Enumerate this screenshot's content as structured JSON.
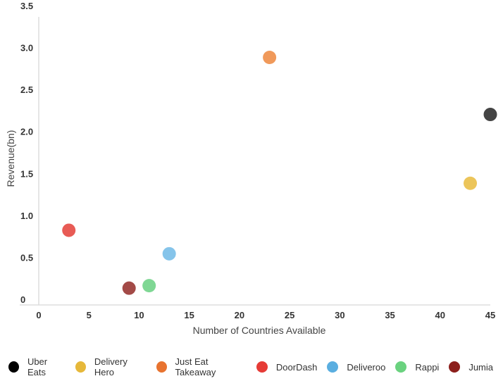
{
  "chart_data": {
    "type": "scatter",
    "title": "",
    "xlabel": "Number of Countries Available",
    "ylabel": "Revenue(bn)",
    "xlim": [
      0,
      45
    ],
    "ylim": [
      0,
      3.5
    ],
    "x_ticks": [
      "0",
      "5",
      "10",
      "15",
      "20",
      "25",
      "30",
      "35",
      "40",
      "45"
    ],
    "y_ticks": [
      "0",
      "0.5",
      "1.0",
      "1.5",
      "2.0",
      "2.5",
      "3.0",
      "3.5"
    ],
    "grid": false,
    "legend_position": "bottom",
    "series": [
      {
        "name": "Uber Eats",
        "color": "#000000",
        "point_color": "#444444",
        "x": 45,
        "y": 2.27
      },
      {
        "name": "Delivery Hero",
        "color": "#e6b83a",
        "point_color": "#ecc55a",
        "x": 43,
        "y": 1.45
      },
      {
        "name": "Just Eat Takeaway",
        "color": "#e8732f",
        "point_color": "#f0995a",
        "x": 23,
        "y": 2.95
      },
      {
        "name": "DoorDash",
        "color": "#e63b36",
        "point_color": "#e85b55",
        "x": 3,
        "y": 0.89
      },
      {
        "name": "Deliveroo",
        "color": "#5aaee0",
        "point_color": "#85c4ea",
        "x": 13,
        "y": 0.61
      },
      {
        "name": "Rappi",
        "color": "#6ad27f",
        "point_color": "#7fd794",
        "x": 11,
        "y": 0.23
      },
      {
        "name": "Jumia",
        "color": "#8c1f1c",
        "point_color": "#a34a47",
        "x": 9,
        "y": 0.2
      }
    ]
  }
}
